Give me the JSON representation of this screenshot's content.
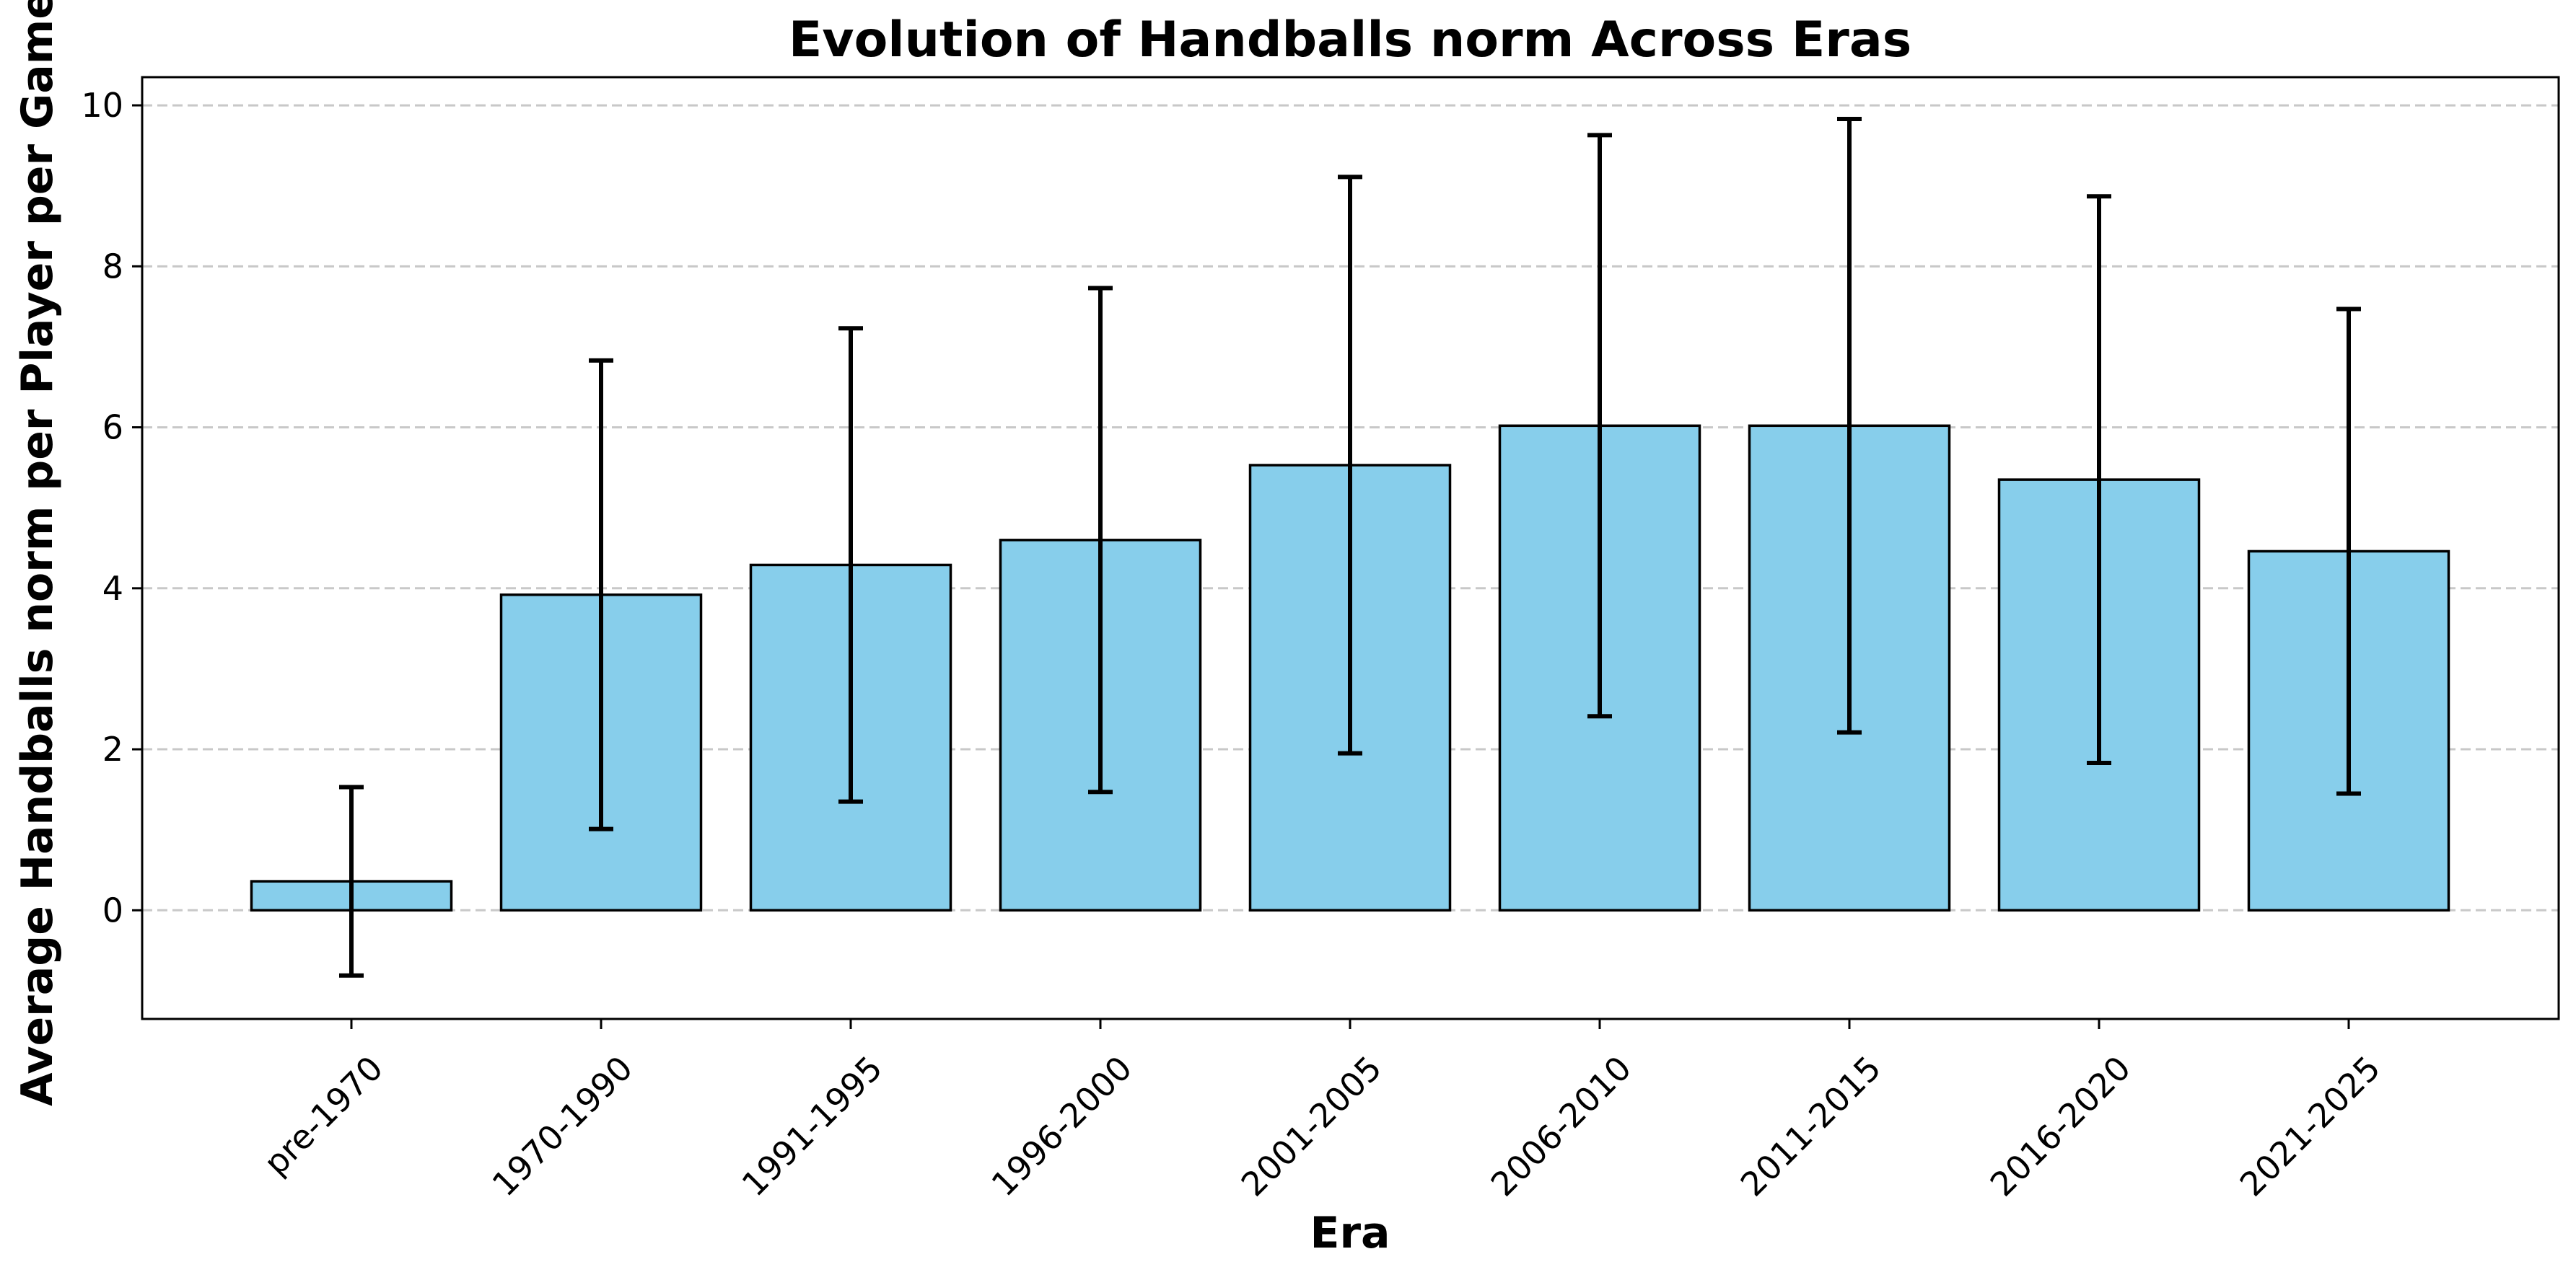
{
  "chart_data": {
    "type": "bar",
    "title": "Evolution of Handballs norm Across Eras",
    "xlabel": "Era",
    "ylabel": "Average Handballs norm per Player per Game",
    "categories": [
      "pre-1970",
      "1970-1990",
      "1991-1995",
      "1996-2000",
      "2001-2005",
      "2006-2010",
      "2011-2015",
      "2016-2020",
      "2021-2025"
    ],
    "values": [
      0.36,
      3.92,
      4.29,
      4.6,
      5.53,
      6.02,
      6.02,
      5.35,
      4.46
    ],
    "error": [
      1.17,
      2.91,
      2.94,
      3.13,
      3.58,
      3.61,
      3.81,
      3.52,
      3.01
    ],
    "ylim": [
      -1.35,
      10.35
    ],
    "yticks": [
      0,
      2,
      4,
      6,
      8,
      10
    ],
    "ytick_labels": [
      "0",
      "2",
      "4",
      "6",
      "8",
      "10"
    ],
    "grid": "y-axis dashed",
    "bar_color": "#87CEEB",
    "edge_color": "#000000",
    "grid_color": "#c8c8c8"
  }
}
